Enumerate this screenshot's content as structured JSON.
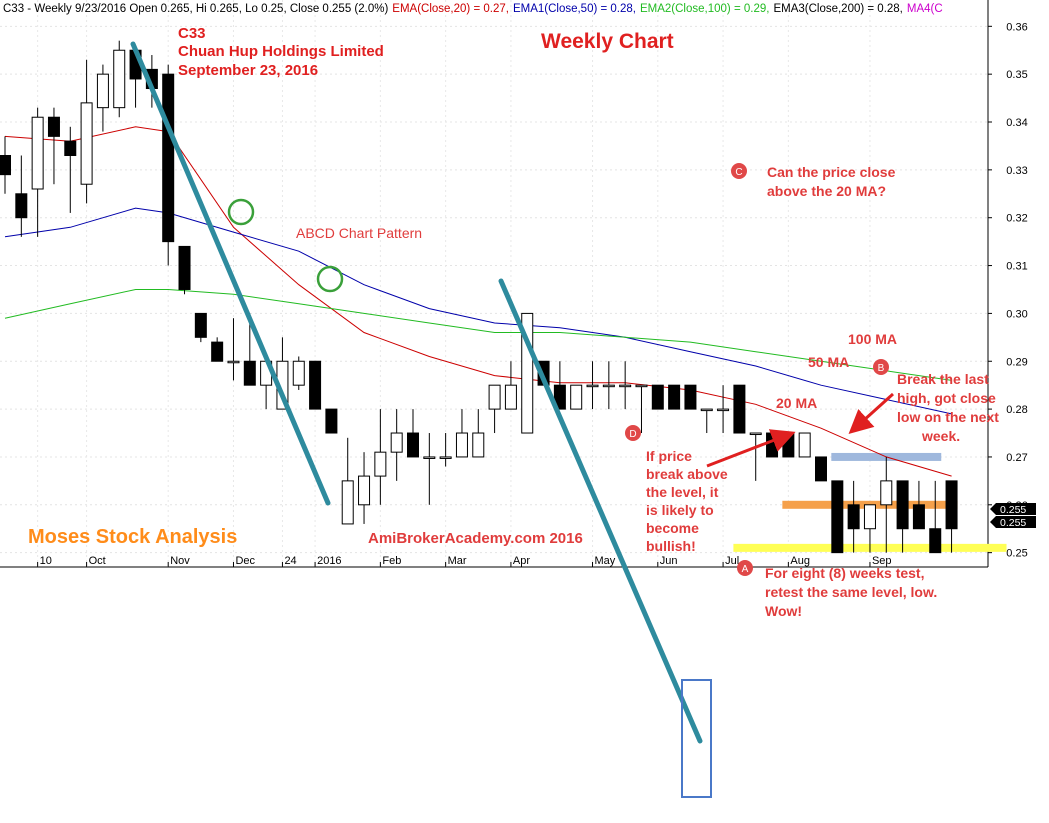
{
  "header": {
    "ticker_info": "C33 - Weekly 9/23/2016 Open 0.265, Hi 0.265, Lo 0.25, Close 0.255 (2.0%)",
    "ema20": "EMA(Close,20) = 0.27,",
    "ema50": "EMA1(Close,50) = 0.28,",
    "ema100": "EMA2(Close,100) = 0.29,",
    "ema200": "EMA3(Close,200) = 0.28,",
    "ma4": "MA4(C"
  },
  "title": {
    "code": "C33",
    "company": "Chuan Hup Holdings Limited",
    "date": "September 23, 2016",
    "chart_type": "Weekly Chart"
  },
  "watermarks": {
    "brand": "Moses Stock Analysis",
    "site": "AmiBrokerAcademy.com  2016"
  },
  "annotations": {
    "abcd": "ABCD Chart Pattern",
    "ma100": "100 MA",
    "ma50": "50 MA",
    "ma20": "20 MA",
    "point_a": "A",
    "point_b": "B",
    "point_c": "C",
    "point_d": "D",
    "note_c": [
      "Can the price close",
      "above the 20 MA?"
    ],
    "note_b": [
      "Break the last",
      "high, got close",
      "low on the next",
      "week."
    ],
    "note_d": [
      "If price",
      "break above",
      "the level, it",
      "is likely to",
      "become",
      "bullish!"
    ],
    "note_a": [
      "For eight (8) weeks test,",
      "retest the same level, low.",
      "Wow!"
    ]
  },
  "price_tags": {
    "last_close": "0.255",
    "last_close_2": "0.255"
  },
  "colors": {
    "ema20": "#cc0000",
    "ema50": "#0000aa",
    "ema100": "#22bb22",
    "trend_line": "#2e8b9e",
    "annotation_text": "#e03c3c",
    "brand": "#ff8c1a",
    "circle": "#3aa03a"
  },
  "chart_data": {
    "type": "candlestick",
    "y_axis": {
      "range": [
        0.247,
        0.3655
      ],
      "ticks": [
        "0.25",
        "0.26",
        "0.27",
        "0.28",
        "0.29",
        "0.30",
        "0.31",
        "0.32",
        "0.33",
        "0.34",
        "0.35",
        "0.36"
      ]
    },
    "x_labels": [
      {
        "label": "10",
        "week": 2
      },
      {
        "label": "Oct",
        "week": 5
      },
      {
        "label": "Nov",
        "week": 10
      },
      {
        "label": "Dec",
        "week": 14
      },
      {
        "label": "24",
        "week": 17
      },
      {
        "label": "2016",
        "week": 19
      },
      {
        "label": "Feb",
        "week": 23
      },
      {
        "label": "Mar",
        "week": 27
      },
      {
        "label": "Apr",
        "week": 31
      },
      {
        "label": "May",
        "week": 36
      },
      {
        "label": "Jun",
        "week": 40
      },
      {
        "label": "Jul",
        "week": 44
      },
      {
        "label": "Aug",
        "week": 48
      },
      {
        "label": "Sep",
        "week": 53
      }
    ],
    "candles": [
      {
        "o": 0.333,
        "h": 0.337,
        "l": 0.325,
        "c": 0.329
      },
      {
        "o": 0.325,
        "h": 0.333,
        "l": 0.316,
        "c": 0.32
      },
      {
        "o": 0.326,
        "h": 0.343,
        "l": 0.316,
        "c": 0.341
      },
      {
        "o": 0.341,
        "h": 0.343,
        "l": 0.327,
        "c": 0.337
      },
      {
        "o": 0.336,
        "h": 0.339,
        "l": 0.321,
        "c": 0.333
      },
      {
        "o": 0.327,
        "h": 0.353,
        "l": 0.323,
        "c": 0.344
      },
      {
        "o": 0.343,
        "h": 0.352,
        "l": 0.338,
        "c": 0.35
      },
      {
        "o": 0.343,
        "h": 0.357,
        "l": 0.341,
        "c": 0.355
      },
      {
        "o": 0.355,
        "h": 0.355,
        "l": 0.343,
        "c": 0.349
      },
      {
        "o": 0.351,
        "h": 0.354,
        "l": 0.343,
        "c": 0.347
      },
      {
        "o": 0.35,
        "h": 0.352,
        "l": 0.31,
        "c": 0.315
      },
      {
        "o": 0.314,
        "h": 0.314,
        "l": 0.304,
        "c": 0.305
      },
      {
        "o": 0.3,
        "h": 0.3,
        "l": 0.294,
        "c": 0.295
      },
      {
        "o": 0.294,
        "h": 0.295,
        "l": 0.29,
        "c": 0.29
      },
      {
        "o": 0.29,
        "h": 0.299,
        "l": 0.286,
        "c": 0.29
      },
      {
        "o": 0.29,
        "h": 0.3,
        "l": 0.285,
        "c": 0.285
      },
      {
        "o": 0.285,
        "h": 0.29,
        "l": 0.28,
        "c": 0.29
      },
      {
        "o": 0.28,
        "h": 0.295,
        "l": 0.28,
        "c": 0.29
      },
      {
        "o": 0.285,
        "h": 0.291,
        "l": 0.284,
        "c": 0.29
      },
      {
        "o": 0.29,
        "h": 0.29,
        "l": 0.28,
        "c": 0.28
      },
      {
        "o": 0.28,
        "h": 0.28,
        "l": 0.275,
        "c": 0.275
      },
      {
        "o": 0.256,
        "h": 0.274,
        "l": 0.256,
        "c": 0.265
      },
      {
        "o": 0.26,
        "h": 0.271,
        "l": 0.256,
        "c": 0.266
      },
      {
        "o": 0.266,
        "h": 0.28,
        "l": 0.26,
        "c": 0.271
      },
      {
        "o": 0.271,
        "h": 0.28,
        "l": 0.265,
        "c": 0.275
      },
      {
        "o": 0.275,
        "h": 0.28,
        "l": 0.27,
        "c": 0.27
      },
      {
        "o": 0.27,
        "h": 0.275,
        "l": 0.26,
        "c": 0.27
      },
      {
        "o": 0.27,
        "h": 0.275,
        "l": 0.268,
        "c": 0.27
      },
      {
        "o": 0.27,
        "h": 0.28,
        "l": 0.27,
        "c": 0.275
      },
      {
        "o": 0.27,
        "h": 0.28,
        "l": 0.27,
        "c": 0.275
      },
      {
        "o": 0.28,
        "h": 0.285,
        "l": 0.275,
        "c": 0.285
      },
      {
        "o": 0.28,
        "h": 0.29,
        "l": 0.28,
        "c": 0.285
      },
      {
        "o": 0.275,
        "h": 0.3,
        "l": 0.275,
        "c": 0.3
      },
      {
        "o": 0.29,
        "h": 0.29,
        "l": 0.285,
        "c": 0.285
      },
      {
        "o": 0.285,
        "h": 0.29,
        "l": 0.28,
        "c": 0.28
      },
      {
        "o": 0.28,
        "h": 0.285,
        "l": 0.28,
        "c": 0.285
      },
      {
        "o": 0.285,
        "h": 0.29,
        "l": 0.28,
        "c": 0.285
      },
      {
        "o": 0.285,
        "h": 0.29,
        "l": 0.28,
        "c": 0.285
      },
      {
        "o": 0.285,
        "h": 0.29,
        "l": 0.28,
        "c": 0.285
      },
      {
        "o": 0.285,
        "h": 0.285,
        "l": 0.275,
        "c": 0.285
      },
      {
        "o": 0.285,
        "h": 0.285,
        "l": 0.28,
        "c": 0.28
      },
      {
        "o": 0.285,
        "h": 0.285,
        "l": 0.28,
        "c": 0.28
      },
      {
        "o": 0.285,
        "h": 0.285,
        "l": 0.28,
        "c": 0.28
      },
      {
        "o": 0.28,
        "h": 0.28,
        "l": 0.275,
        "c": 0.28
      },
      {
        "o": 0.28,
        "h": 0.285,
        "l": 0.275,
        "c": 0.28
      },
      {
        "o": 0.285,
        "h": 0.285,
        "l": 0.275,
        "c": 0.275
      },
      {
        "o": 0.275,
        "h": 0.275,
        "l": 0.265,
        "c": 0.275
      },
      {
        "o": 0.275,
        "h": 0.275,
        "l": 0.27,
        "c": 0.27
      },
      {
        "o": 0.275,
        "h": 0.275,
        "l": 0.27,
        "c": 0.27
      },
      {
        "o": 0.27,
        "h": 0.275,
        "l": 0.27,
        "c": 0.275
      },
      {
        "o": 0.27,
        "h": 0.27,
        "l": 0.265,
        "c": 0.265
      },
      {
        "o": 0.265,
        "h": 0.265,
        "l": 0.25,
        "c": 0.25
      },
      {
        "o": 0.26,
        "h": 0.265,
        "l": 0.25,
        "c": 0.255
      },
      {
        "o": 0.255,
        "h": 0.26,
        "l": 0.25,
        "c": 0.26
      },
      {
        "o": 0.26,
        "h": 0.27,
        "l": 0.25,
        "c": 0.265
      },
      {
        "o": 0.265,
        "h": 0.265,
        "l": 0.25,
        "c": 0.255
      },
      {
        "o": 0.26,
        "h": 0.265,
        "l": 0.255,
        "c": 0.255
      },
      {
        "o": 0.255,
        "h": 0.265,
        "l": 0.25,
        "c": 0.25
      },
      {
        "o": 0.265,
        "h": 0.265,
        "l": 0.25,
        "c": 0.255
      }
    ],
    "series": [
      {
        "name": "EMA(Close,20)",
        "x": [
          0,
          4,
          8,
          10,
          14,
          18,
          22,
          26,
          30,
          34,
          38,
          42,
          46,
          50,
          54,
          58
        ],
        "y": [
          0.337,
          0.336,
          0.339,
          0.338,
          0.318,
          0.306,
          0.296,
          0.291,
          0.287,
          0.2855,
          0.2855,
          0.284,
          0.281,
          0.276,
          0.27,
          0.266
        ]
      },
      {
        "name": "EMA1(Close,50)",
        "x": [
          0,
          4,
          8,
          10,
          14,
          18,
          22,
          26,
          30,
          34,
          38,
          42,
          46,
          50,
          54,
          58
        ],
        "y": [
          0.316,
          0.318,
          0.322,
          0.321,
          0.317,
          0.313,
          0.306,
          0.301,
          0.298,
          0.297,
          0.295,
          0.292,
          0.289,
          0.285,
          0.282,
          0.279
        ]
      },
      {
        "name": "EMA2(Close,100)",
        "x": [
          0,
          4,
          8,
          10,
          14,
          18,
          22,
          26,
          30,
          34,
          38,
          42,
          46,
          50,
          54,
          58
        ],
        "y": [
          0.299,
          0.302,
          0.305,
          0.305,
          0.304,
          0.302,
          0.3,
          0.298,
          0.296,
          0.296,
          0.295,
          0.294,
          0.292,
          0.29,
          0.288,
          0.286
        ]
      }
    ],
    "levels": [
      {
        "name": "high-level",
        "value": 0.27,
        "color": "#9fb8dd",
        "from_week": 51,
        "to_week": 57
      },
      {
        "name": "mid-level",
        "value": 0.26,
        "color": "#f5a04a",
        "from_week": 48,
        "to_week": 58
      },
      {
        "name": "low-level",
        "value": 0.251,
        "color": "#ffff55",
        "from_week": 45,
        "to_week": 61
      }
    ]
  }
}
